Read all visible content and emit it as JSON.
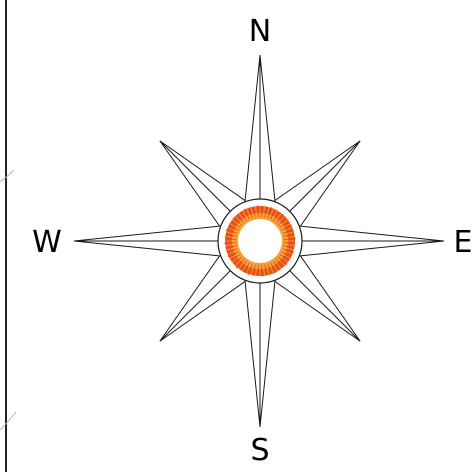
{
  "compass": {
    "labels": {
      "north": "N",
      "south": "S",
      "east": "E",
      "west": "W"
    },
    "colors": {
      "outline": "#1a1a1a",
      "ray_fill": "#ffffff",
      "ring_outer": "#e8501a",
      "ring_inner": "#f6a23a",
      "hub_center": "#ffffff"
    },
    "icon": "compass-rose-icon"
  }
}
